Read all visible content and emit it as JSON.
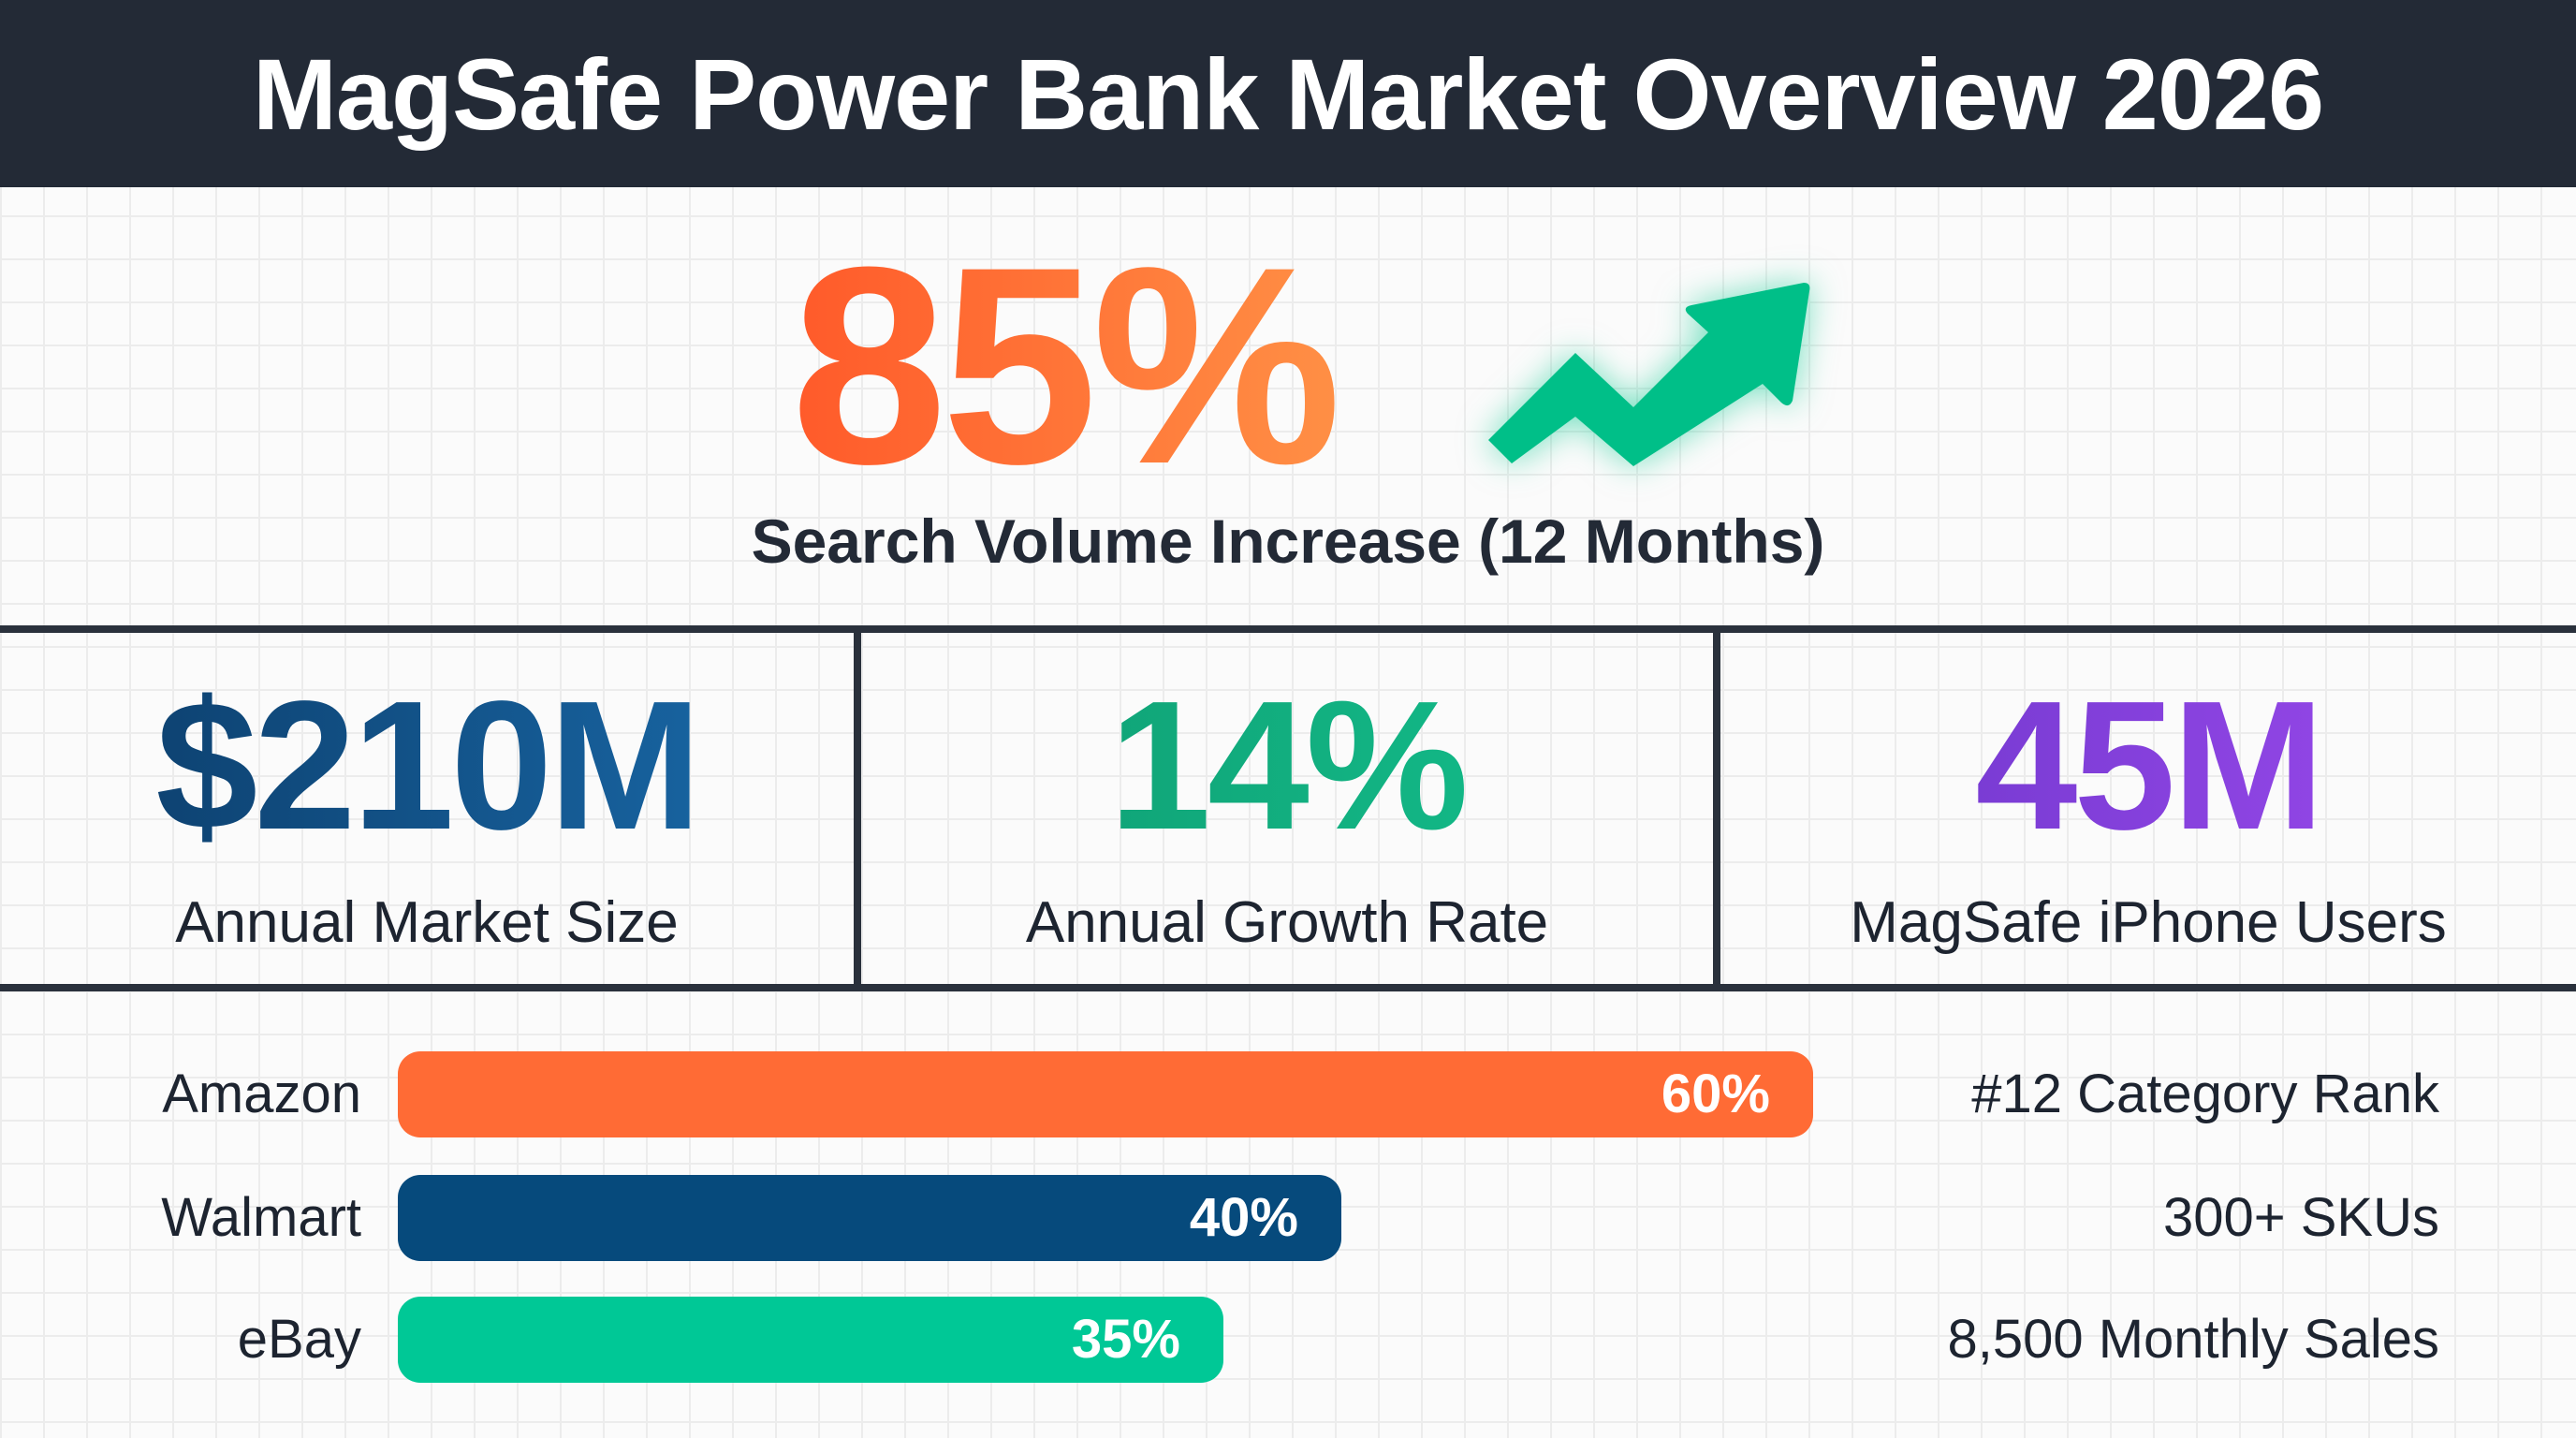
{
  "header": {
    "title": "MagSafe Power Bank Market Overview 2026"
  },
  "hero": {
    "value": "85%",
    "label": "Search Volume Increase (12 Months)",
    "icon": "trending-up-arrow-icon"
  },
  "stats": [
    {
      "value": "$210M",
      "label": "Annual Market Size"
    },
    {
      "value": "14%",
      "label": "Annual Growth Rate"
    },
    {
      "value": "45M",
      "label": "MagSafe iPhone Users"
    }
  ],
  "channels": [
    {
      "name": "Amazon",
      "share": 60,
      "share_label": "60%",
      "color": "#ff6b35",
      "side_text": "#12 Category Rank"
    },
    {
      "name": "Walmart",
      "share": 40,
      "share_label": "40%",
      "color": "#064a7c",
      "side_text": "300+ SKUs"
    },
    {
      "name": "eBay",
      "share": 35,
      "share_label": "35%",
      "color": "#00c896",
      "side_text": "8,500 Monthly Sales"
    }
  ],
  "colors": {
    "header_bg": "#232a36",
    "hero": "#ff6b35",
    "arrow": "#00c08a"
  }
}
